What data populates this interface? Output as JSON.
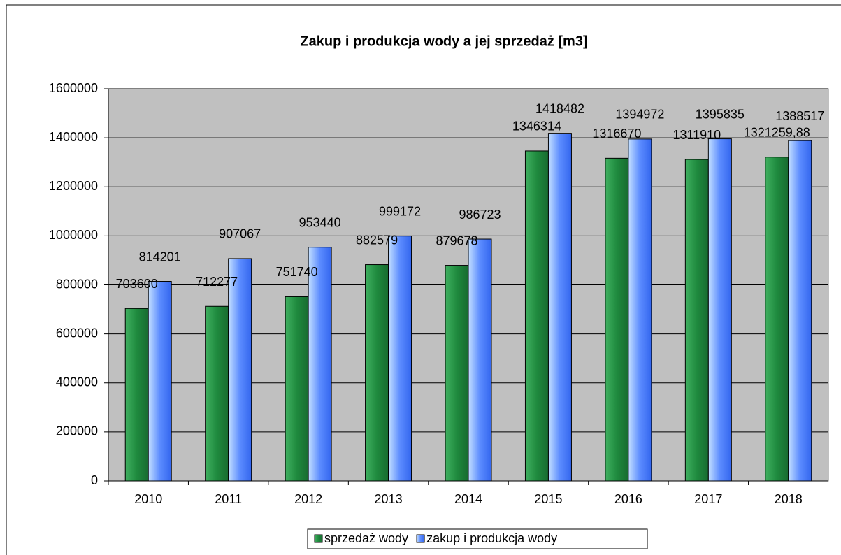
{
  "chart_data": {
    "type": "bar",
    "title": "Zakup i produkcja wody a jej sprzedaż [m3]",
    "categories": [
      "2010",
      "2011",
      "2012",
      "2013",
      "2014",
      "2015",
      "2016",
      "2017",
      "2018"
    ],
    "series": [
      {
        "name": "sprzedaż wody",
        "color": "#1f8a3e",
        "values": [
          703600,
          712277,
          751740,
          882579,
          879678,
          1346314,
          1316670,
          1311910,
          1321259.88
        ],
        "value_labels": [
          "703600",
          "712277",
          "751740",
          "882579",
          "879678",
          "1346314",
          "1316670",
          "1311910",
          "1321259,88"
        ]
      },
      {
        "name": "zakup i produkcja wody",
        "color": "#5c8cff",
        "values": [
          814201,
          907067,
          953440,
          999172,
          986723,
          1418482,
          1394972,
          1395835,
          1388517
        ]
      }
    ],
    "ylim": [
      0,
      1600000
    ],
    "yticks": [
      0,
      200000,
      400000,
      600000,
      800000,
      1000000,
      1200000,
      1400000,
      1600000
    ],
    "grid": true,
    "legend": "bottom"
  }
}
